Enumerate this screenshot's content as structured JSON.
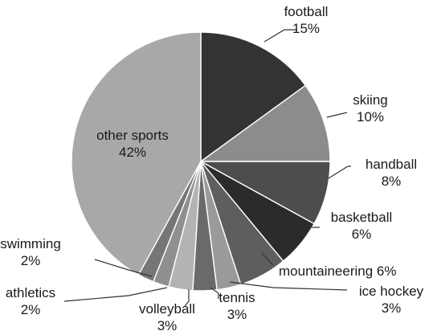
{
  "chart_data": {
    "type": "pie",
    "unit": "%",
    "start": "12 o'clock, clockwise",
    "slices": [
      {
        "label": "football",
        "value": 15,
        "value_text": "15%",
        "color": "#333333"
      },
      {
        "label": "skiing",
        "value": 10,
        "value_text": "10%",
        "color": "#8c8c8c"
      },
      {
        "label": "handball",
        "value": 8,
        "value_text": "8%",
        "color": "#4d4d4d"
      },
      {
        "label": "basketball",
        "value": 6,
        "value_text": "6%",
        "color": "#2b2b2b"
      },
      {
        "label": "mountaineering",
        "value": 6,
        "value_text": "6%",
        "color": "#5e5e5e"
      },
      {
        "label": "ice hockey",
        "value": 3,
        "value_text": "3%",
        "color": "#9a9a9a"
      },
      {
        "label": "tennis",
        "value": 3,
        "value_text": "3%",
        "color": "#6a6a6a"
      },
      {
        "label": "volleyball",
        "value": 3,
        "value_text": "3%",
        "color": "#b3b3b3"
      },
      {
        "label": "athletics",
        "value": 2,
        "value_text": "2%",
        "color": "#8f8f8f"
      },
      {
        "label": "swimming",
        "value": 2,
        "value_text": "2%",
        "color": "#767676"
      },
      {
        "label": "other sports",
        "value": 42,
        "value_text": "42%",
        "color": "#a8a8a8"
      }
    ]
  }
}
